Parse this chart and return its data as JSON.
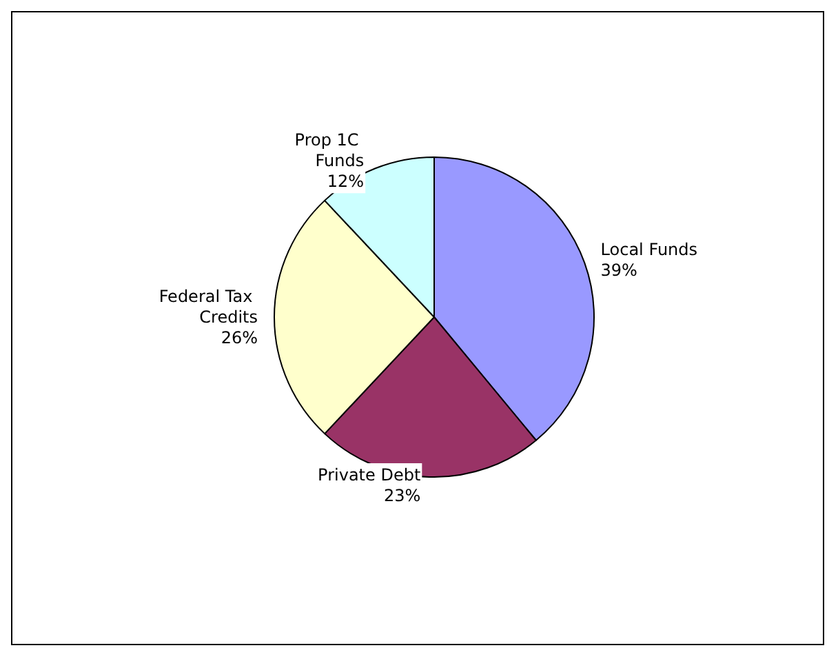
{
  "chart_data": {
    "type": "pie",
    "categories": [
      "Local Funds",
      "Private Debt",
      "Federal Tax Credits",
      "Prop 1C Funds"
    ],
    "values": [
      39,
      23,
      26,
      12
    ],
    "colors": [
      "#9999ff",
      "#993366",
      "#ffffcc",
      "#ccffff"
    ],
    "value_labels": [
      "39%",
      "23%",
      "26%",
      "12%"
    ],
    "legend": false
  }
}
